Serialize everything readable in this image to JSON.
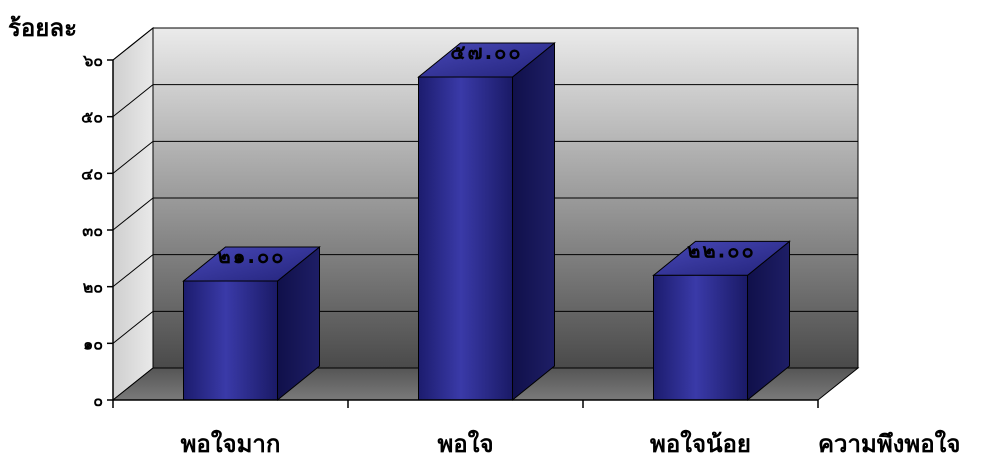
{
  "chart_data": {
    "type": "bar",
    "title": "",
    "ylabel": "ร้อยละ",
    "xlabel": "ความพึงพอใจ",
    "categories": [
      "พอใจมาก",
      "พอใจ",
      "พอใจน้อย"
    ],
    "values": [
      21,
      57,
      22
    ],
    "data_labels": [
      "๒๑.๐๐",
      "๕๗.๐๐",
      "๒๒.๐๐"
    ],
    "ylim": [
      0,
      60
    ],
    "yticks": [
      0,
      10,
      20,
      30,
      40,
      50,
      60
    ],
    "ytick_labels": [
      "๐",
      "๑๐",
      "๒๐",
      "๓๐",
      "๔๐",
      "๕๐",
      "๖๐"
    ],
    "grid": true,
    "legend": "none",
    "style": "3d-column",
    "bar_color": "#2b2b8f",
    "wall_gradient": [
      "#ebebeb",
      "#4a4a4a"
    ]
  }
}
